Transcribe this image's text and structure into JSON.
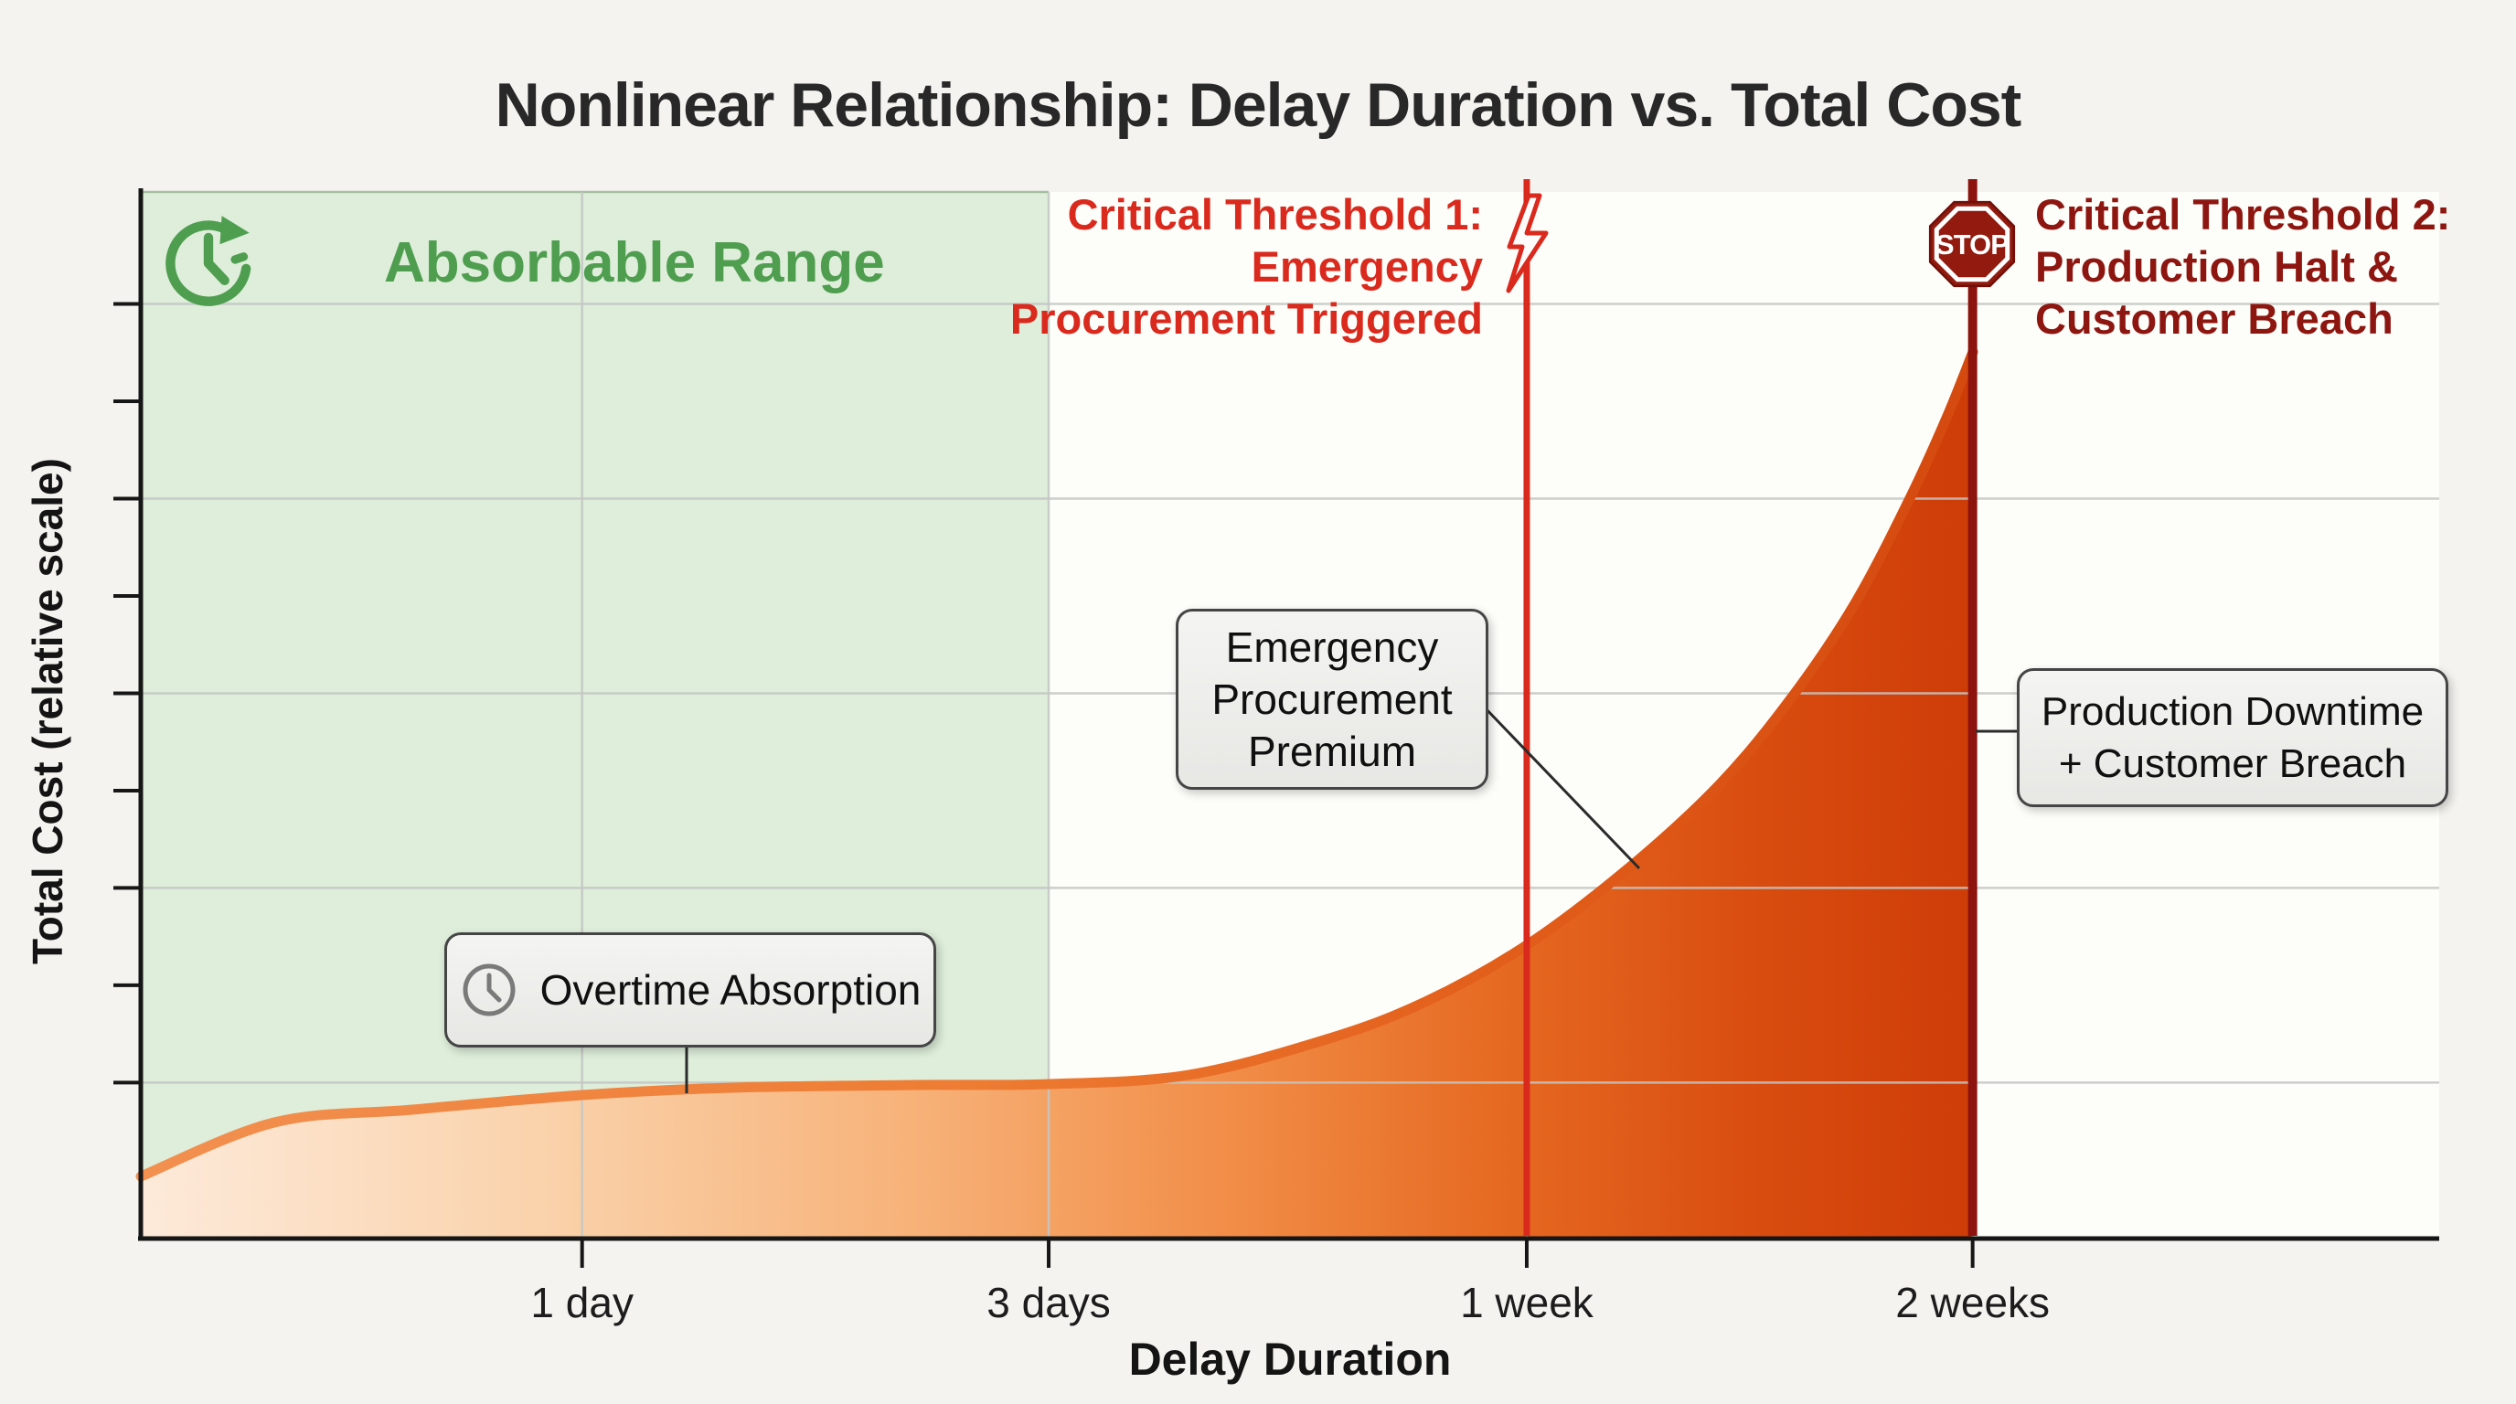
{
  "chart": {
    "title": "Nonlinear Relationship: Delay Duration vs. Total Cost",
    "xlabel": "Delay Duration",
    "ylabel": "Total Cost (relative scale)"
  },
  "labels": {
    "absorbable": "Absorbable Range",
    "threshold1": "Critical Threshold 1:\nEmergency\nProcurement Triggered",
    "threshold2": "Critical Threshold 2:\nProduction Halt &\nCustomer Breach",
    "stop": "STOP",
    "callouts": {
      "emergency": "Emergency\nProcurement\nPremium",
      "production": "Production Downtime\n+ Customer Breach",
      "overtime": "Overtime Absorption"
    }
  },
  "colors": {
    "title_text": "#282828",
    "green_region_fill": "#deeeda",
    "green_accent": "#4f9e50",
    "threshold1_red": "#da291d",
    "threshold2_darkred": "#8e1611",
    "curve_orange": "#ee7c33",
    "area_light": "#fdeada",
    "area_dark": "#ce3c08",
    "gridline": "#c4c6c4",
    "axis": "#161616",
    "callout_bg": "#ededeb",
    "callout_border": "#454545"
  },
  "chart_data": {
    "type": "area",
    "title": "Nonlinear Relationship: Delay Duration vs. Total Cost",
    "xlabel": "Delay Duration",
    "ylabel": "Total Cost (relative scale)",
    "grid": true,
    "x_axis": {
      "ticks": [
        {
          "label": "1 day",
          "pos": 0.192
        },
        {
          "label": "3 days",
          "pos": 0.395
        },
        {
          "label": "1 week",
          "pos": 0.603
        },
        {
          "label": "2 weeks",
          "pos": 0.797
        }
      ]
    },
    "y_axis": {
      "label": "Total Cost (relative scale)",
      "numeric_labels_shown": false,
      "tick_positions": [
        0.149,
        0.242,
        0.335,
        0.428,
        0.521,
        0.614,
        0.707,
        0.8,
        0.893
      ],
      "gridline_positions": [
        0.149,
        0.335,
        0.521,
        0.707,
        0.893
      ]
    },
    "series": [
      {
        "name": "Total Cost",
        "points": [
          {
            "x": 0.0,
            "y": 0.059
          },
          {
            "x": 0.058,
            "y": 0.111
          },
          {
            "x": 0.118,
            "y": 0.123
          },
          {
            "x": 0.192,
            "y": 0.137
          },
          {
            "x": 0.257,
            "y": 0.144
          },
          {
            "x": 0.336,
            "y": 0.147
          },
          {
            "x": 0.395,
            "y": 0.148
          },
          {
            "x": 0.456,
            "y": 0.156
          },
          {
            "x": 0.516,
            "y": 0.19
          },
          {
            "x": 0.559,
            "y": 0.226
          },
          {
            "x": 0.603,
            "y": 0.28
          },
          {
            "x": 0.647,
            "y": 0.354
          },
          {
            "x": 0.687,
            "y": 0.434
          },
          {
            "x": 0.718,
            "y": 0.516
          },
          {
            "x": 0.746,
            "y": 0.607
          },
          {
            "x": 0.77,
            "y": 0.709
          },
          {
            "x": 0.786,
            "y": 0.786
          },
          {
            "x": 0.797,
            "y": 0.847
          }
        ]
      }
    ],
    "regions": [
      {
        "label": "Absorbable Range",
        "x_from": 0.0,
        "x_to": 0.395,
        "color": "#deeeda"
      }
    ],
    "thresholds": [
      {
        "label": "Critical Threshold 1: Emergency Procurement Triggered",
        "x": 0.603,
        "color": "#da291d",
        "width": 7
      },
      {
        "label": "Critical Threshold 2: Production Halt & Customer Breach",
        "x": 0.797,
        "color": "#8c130e",
        "width": 10
      }
    ],
    "annotations": [
      "Overtime Absorption",
      "Emergency Procurement Premium",
      "Production Downtime + Customer Breach"
    ]
  }
}
